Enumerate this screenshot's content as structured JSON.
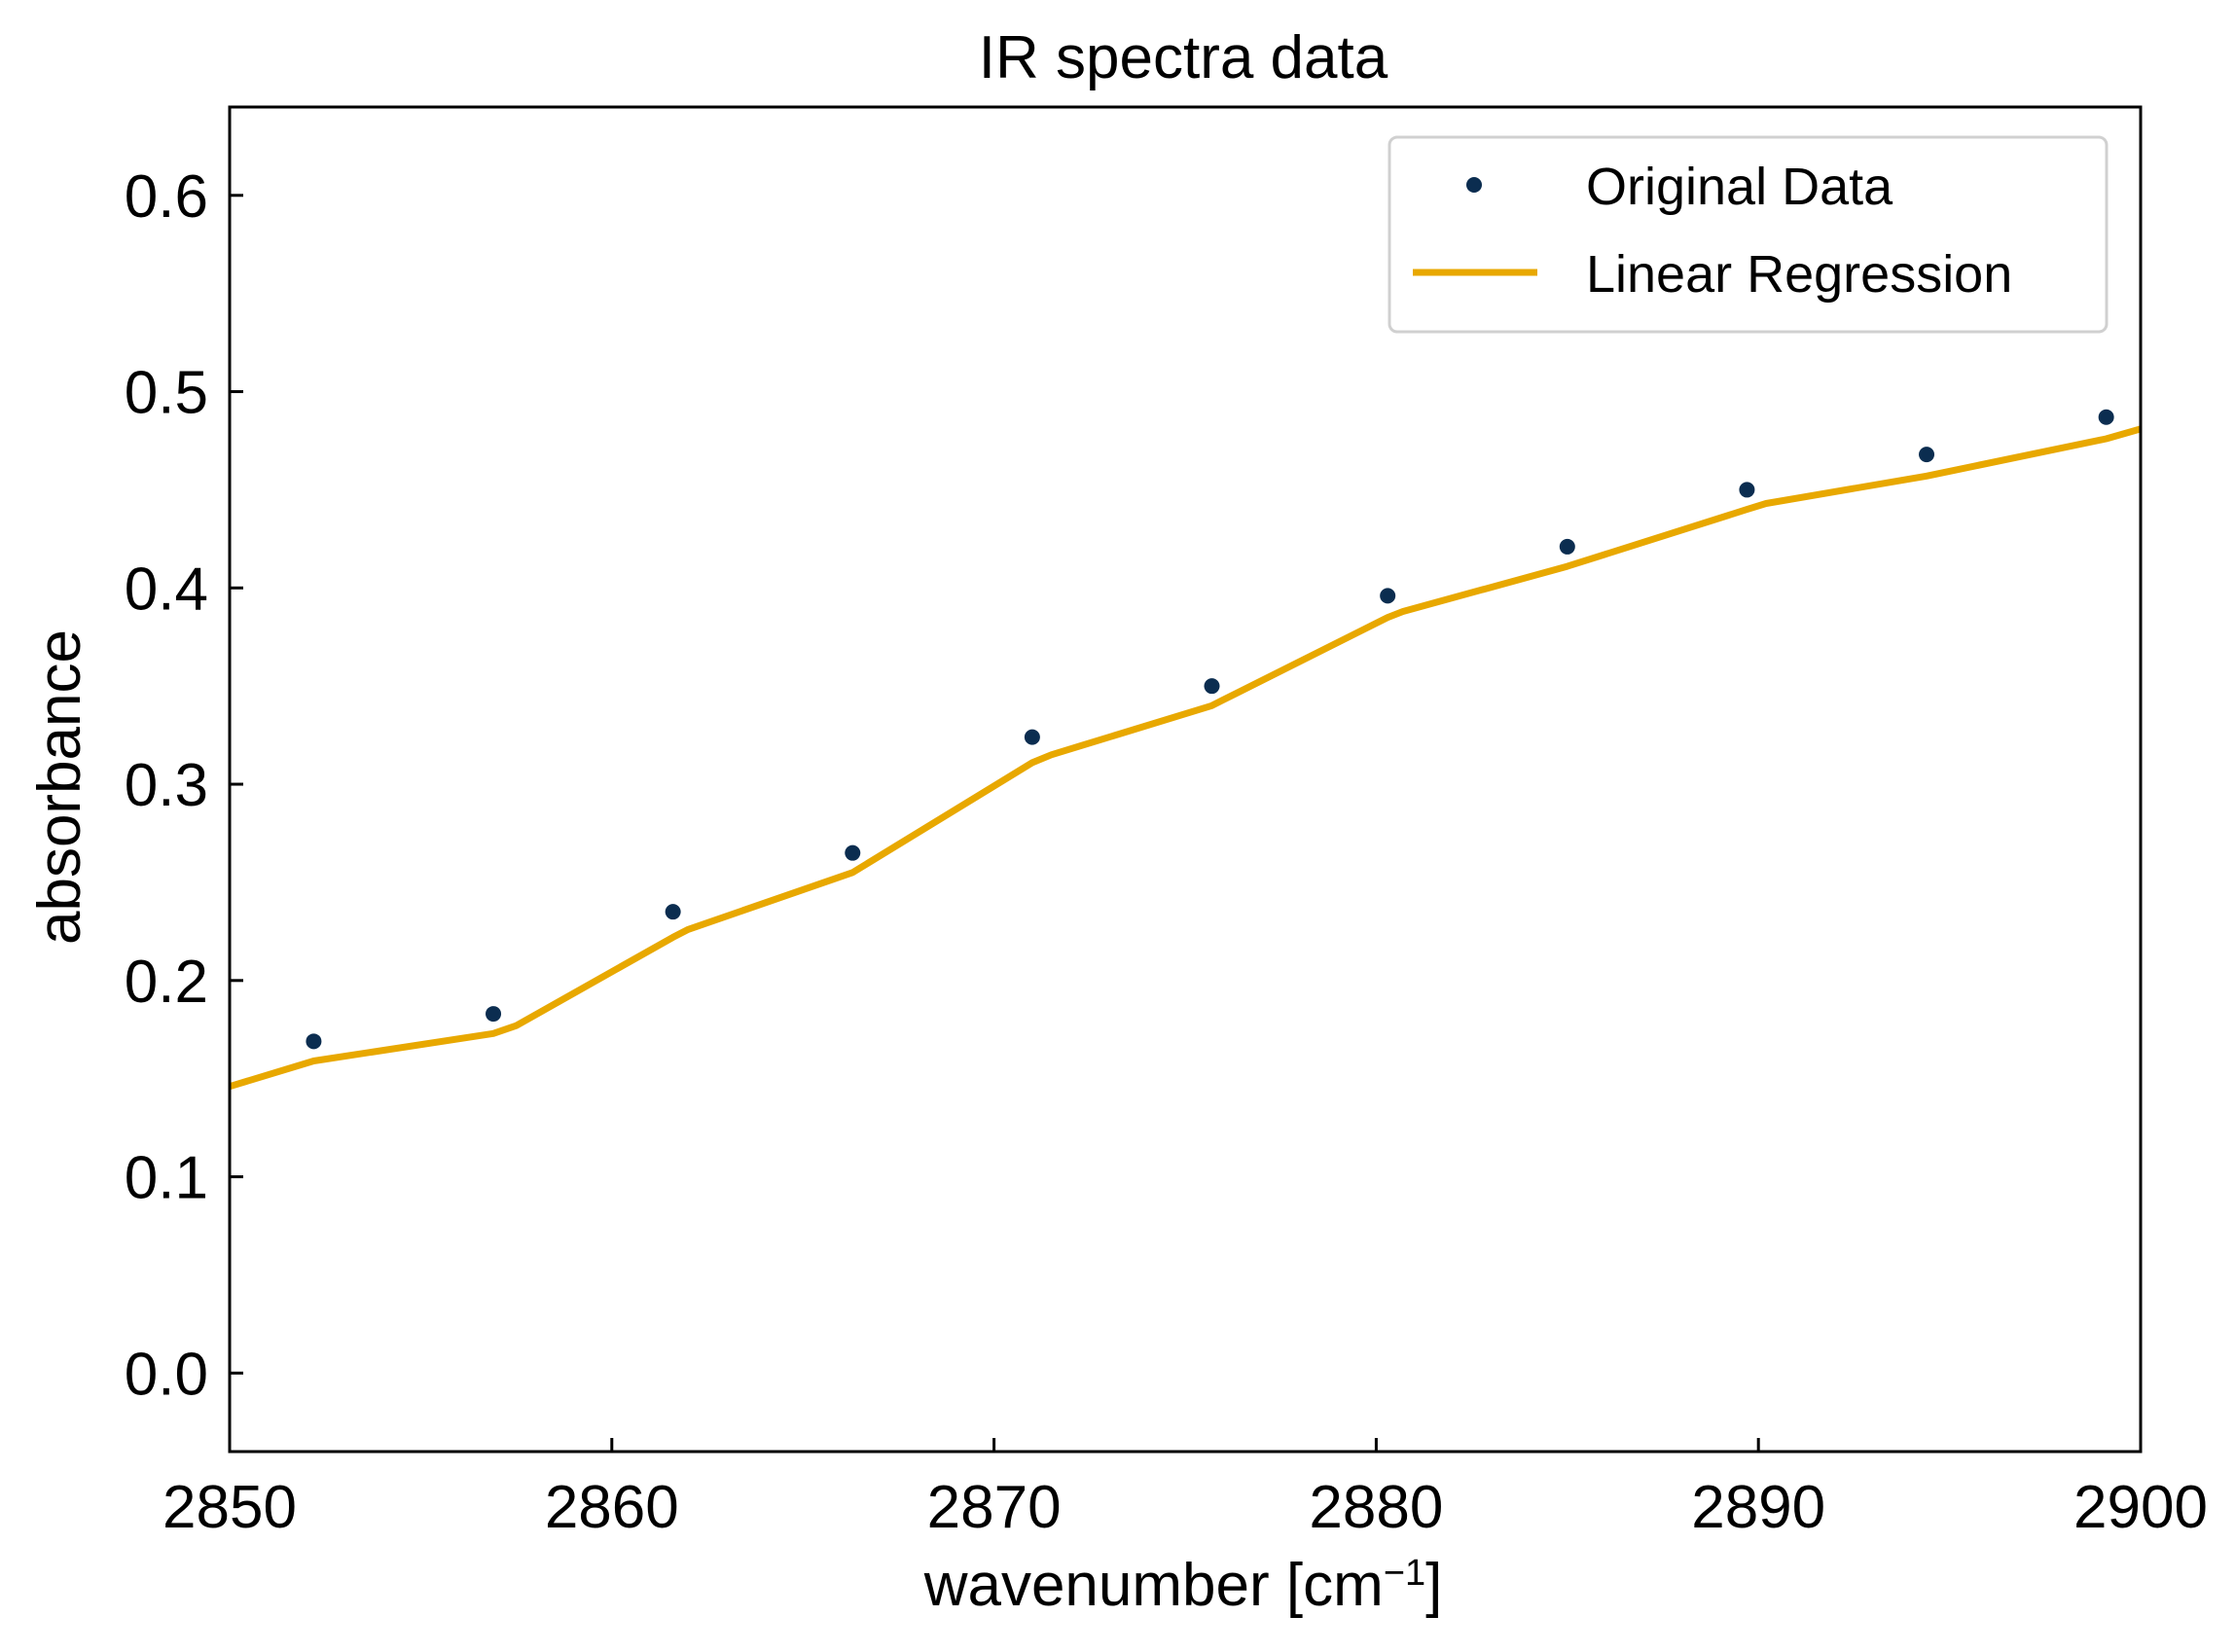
{
  "chart_data": {
    "type": "line",
    "title": "IR spectra data",
    "xlabel": "wavenumber [cm",
    "xlabel_superscript": "−1",
    "xlabel_suffix": "]",
    "ylabel": "absorbance",
    "xlim": [
      2850,
      2900
    ],
    "ylim": [
      -0.04,
      0.645
    ],
    "xticks": [
      2850,
      2860,
      2870,
      2880,
      2890,
      2900
    ],
    "xtick_labels": [
      "2850",
      "2860",
      "2870",
      "2880",
      "2890",
      "2900"
    ],
    "yticks": [
      0.0,
      0.1,
      0.2,
      0.3,
      0.4,
      0.5,
      0.6
    ],
    "ytick_labels": [
      "0.0",
      "0.1",
      "0.2",
      "0.3",
      "0.4",
      "0.5",
      "0.6"
    ],
    "grid": false,
    "legend_position": "top-right",
    "series": [
      {
        "name": "Original Data",
        "style": "markers",
        "color": "#0b2d50",
        "x": [
          2852.2,
          2856.9,
          2861.6,
          2866.3,
          2871.0,
          2875.7,
          2880.3,
          2885.0,
          2889.7,
          2894.4,
          2899.1
        ],
        "y": [
          0.169,
          0.183,
          0.235,
          0.265,
          0.324,
          0.35,
          0.396,
          0.421,
          0.45,
          0.468,
          0.487
        ]
      },
      {
        "name": "Linear Regression",
        "style": "line",
        "color": "#e8a800",
        "x": [
          2850.0,
          2852.2,
          2856.9,
          2857.5,
          2861.6,
          2862.0,
          2866.3,
          2871.0,
          2871.5,
          2875.7,
          2876.0,
          2880.3,
          2880.7,
          2885.0,
          2889.7,
          2890.2,
          2894.4,
          2899.1,
          2900.0
        ],
        "y": [
          0.146,
          0.159,
          0.173,
          0.177,
          0.222,
          0.226,
          0.255,
          0.311,
          0.315,
          0.34,
          0.343,
          0.385,
          0.388,
          0.411,
          0.44,
          0.443,
          0.457,
          0.476,
          0.481
        ]
      }
    ]
  }
}
